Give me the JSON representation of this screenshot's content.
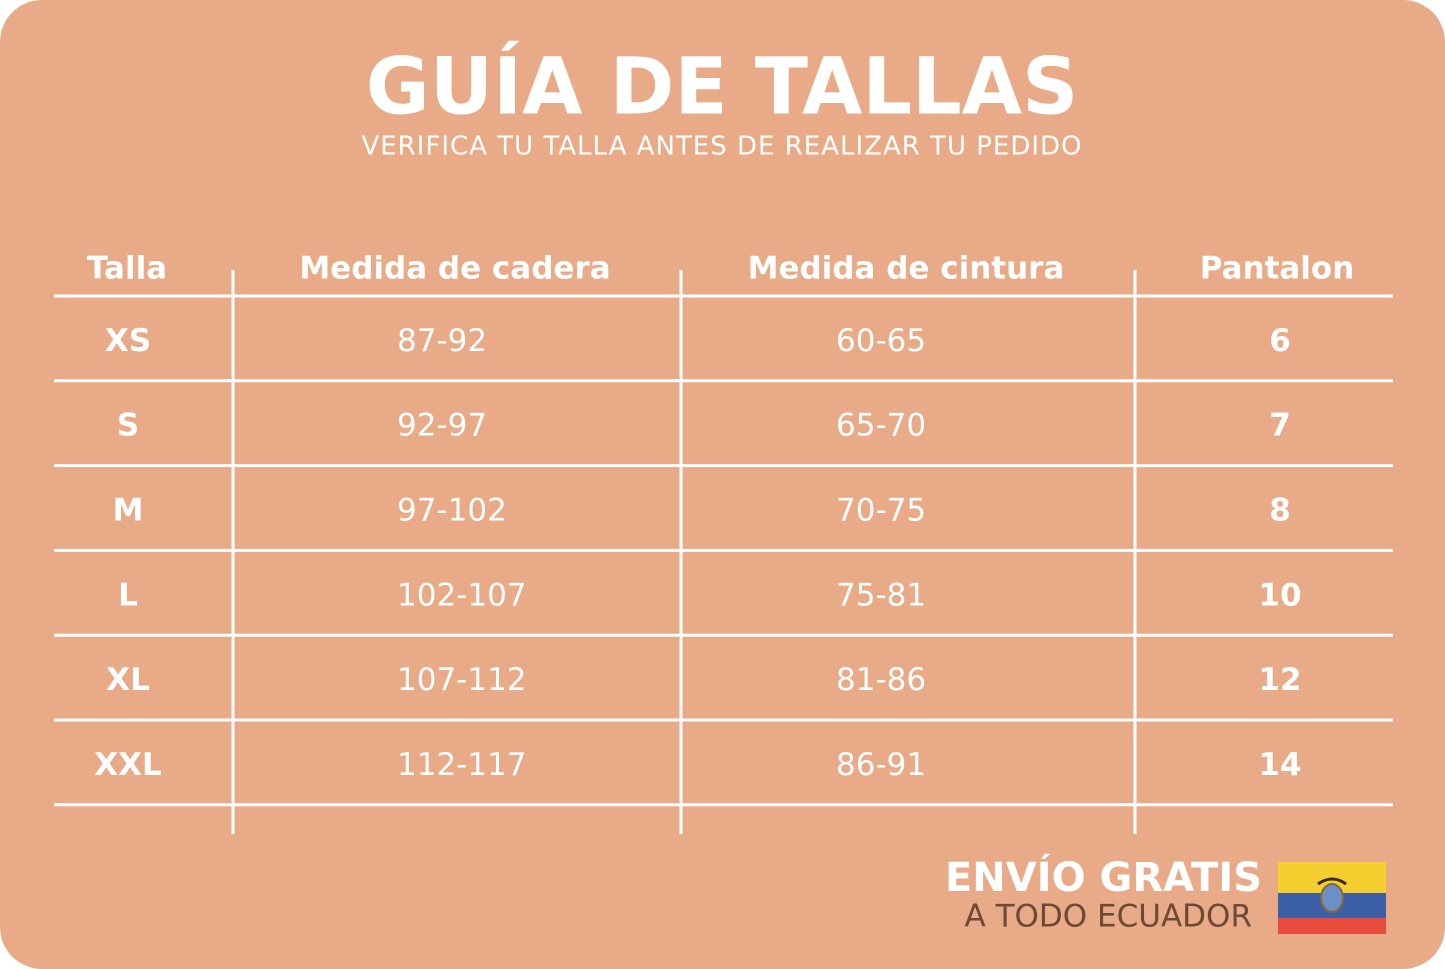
{
  "header": {
    "title": "GUÍA DE TALLAS",
    "subtitle": "VERIFICA TU TALLA ANTES DE REALIZAR TU PEDIDO"
  },
  "table": {
    "headers": [
      "Talla",
      "Medida de cadera",
      "Medida de cintura",
      "Pantalon"
    ],
    "rows": [
      [
        "XS",
        "87-92",
        "60-65",
        "6"
      ],
      [
        "S",
        "92-97",
        "65-70",
        "7"
      ],
      [
        "M",
        "97-102",
        "70-75",
        "8"
      ],
      [
        "L",
        "102-107",
        "75-81",
        "10"
      ],
      [
        "XL",
        "107-112",
        "81-86",
        "12"
      ],
      [
        "XXL",
        "112-117",
        "86-91",
        "14"
      ]
    ]
  },
  "footer": {
    "line1": "ENVÍO GRATIS",
    "line2": "A TODO ECUADOR"
  }
}
